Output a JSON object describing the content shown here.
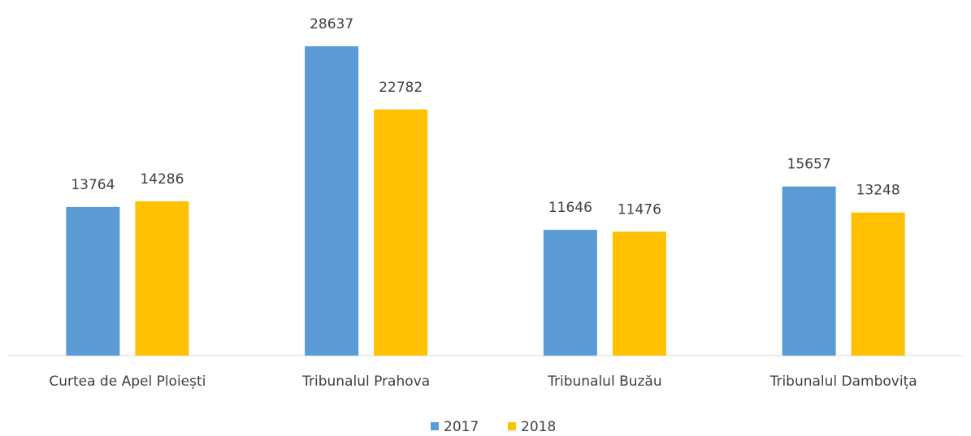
{
  "chart_data": {
    "type": "bar",
    "categories": [
      "Curtea de Apel Ploiești",
      "Tribunalul Prahova",
      "Tribunalul Buzău",
      "Tribunalul Dambovița"
    ],
    "series": [
      {
        "name": "2017",
        "color": "#5b9bd5",
        "values": [
          13764,
          28637,
          11646,
          15657
        ]
      },
      {
        "name": "2018",
        "color": "#ffc000",
        "values": [
          14286,
          22782,
          11476,
          13248
        ]
      }
    ],
    "legend": "bottom"
  }
}
